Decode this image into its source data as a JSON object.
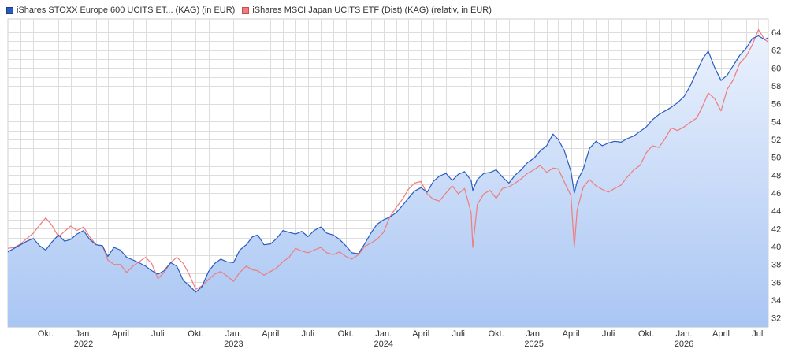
{
  "colors": {
    "series1": "#2a5cbf",
    "series2": "#f07c7c",
    "area_top": "#eaf1fd",
    "area_bottom": "#a9c6f3",
    "grid": "#dddddd"
  },
  "chart_data": {
    "type": "line",
    "legend": [
      "iShares STOXX Europe 600 UCITS ET... (KAG) (in EUR)",
      "iShares MSCI Japan UCITS ETF (Dist) (KAG) (relativ, in EUR)"
    ],
    "legend_position": "top-left",
    "grid": true,
    "y_axis_side": "right",
    "ylim": [
      31,
      65.5
    ],
    "y_ticks": [
      32,
      34,
      36,
      38,
      40,
      42,
      44,
      46,
      48,
      50,
      52,
      54,
      56,
      58,
      60,
      62,
      64
    ],
    "x_range": [
      "2021-07-01",
      "2026-07-25"
    ],
    "x_ticks": [
      {
        "date": "2021-10-01",
        "label": "Okt.",
        "year": ""
      },
      {
        "date": "2022-01-01",
        "label": "Jan.",
        "year": "2022"
      },
      {
        "date": "2022-04-01",
        "label": "April",
        "year": ""
      },
      {
        "date": "2022-07-01",
        "label": "Juli",
        "year": ""
      },
      {
        "date": "2022-10-01",
        "label": "Okt.",
        "year": ""
      },
      {
        "date": "2023-01-01",
        "label": "Jan.",
        "year": "2023"
      },
      {
        "date": "2023-04-01",
        "label": "April",
        "year": ""
      },
      {
        "date": "2023-07-01",
        "label": "Juli",
        "year": ""
      },
      {
        "date": "2023-10-01",
        "label": "Okt.",
        "year": ""
      },
      {
        "date": "2024-01-01",
        "label": "Jan.",
        "year": "2024"
      },
      {
        "date": "2024-04-01",
        "label": "April",
        "year": ""
      },
      {
        "date": "2024-07-01",
        "label": "Juli",
        "year": ""
      },
      {
        "date": "2024-10-01",
        "label": "Okt.",
        "year": ""
      },
      {
        "date": "2025-01-01",
        "label": "Jan.",
        "year": "2025"
      },
      {
        "date": "2025-04-01",
        "label": "April",
        "year": ""
      },
      {
        "date": "2025-07-01",
        "label": "Juli",
        "year": ""
      },
      {
        "date": "2025-10-01",
        "label": "Okt.",
        "year": ""
      },
      {
        "date": "2026-01-01",
        "label": "Jan.",
        "year": "2026"
      },
      {
        "date": "2026-04-01",
        "label": "April",
        "year": ""
      },
      {
        "date": "2026-07-01",
        "label": "Juli",
        "year": ""
      }
    ],
    "series": [
      {
        "name": "iShares STOXX Europe 600 UCITS ET... (KAG) (in EUR)",
        "area": true,
        "x": [
          "2021-07-01",
          "2021-07-16",
          "2021-08-01",
          "2021-08-16",
          "2021-09-01",
          "2021-09-16",
          "2021-10-01",
          "2021-10-16",
          "2021-11-01",
          "2021-11-16",
          "2021-12-01",
          "2021-12-16",
          "2022-01-01",
          "2022-01-16",
          "2022-02-01",
          "2022-02-16",
          "2022-03-01",
          "2022-03-16",
          "2022-04-01",
          "2022-04-16",
          "2022-05-01",
          "2022-05-16",
          "2022-06-01",
          "2022-06-16",
          "2022-07-01",
          "2022-07-16",
          "2022-08-01",
          "2022-08-16",
          "2022-09-01",
          "2022-09-16",
          "2022-10-01",
          "2022-10-16",
          "2022-11-01",
          "2022-11-16",
          "2022-12-01",
          "2022-12-16",
          "2023-01-01",
          "2023-01-16",
          "2023-02-01",
          "2023-02-16",
          "2023-03-01",
          "2023-03-16",
          "2023-04-01",
          "2023-04-16",
          "2023-05-01",
          "2023-05-16",
          "2023-06-01",
          "2023-06-16",
          "2023-07-01",
          "2023-07-16",
          "2023-08-01",
          "2023-08-16",
          "2023-09-01",
          "2023-09-16",
          "2023-10-01",
          "2023-10-16",
          "2023-11-01",
          "2023-11-16",
          "2023-12-01",
          "2023-12-16",
          "2024-01-01",
          "2024-01-16",
          "2024-02-01",
          "2024-02-16",
          "2024-03-01",
          "2024-03-16",
          "2024-04-01",
          "2024-04-16",
          "2024-05-01",
          "2024-05-16",
          "2024-06-01",
          "2024-06-16",
          "2024-07-01",
          "2024-07-16",
          "2024-08-01",
          "2024-08-05",
          "2024-08-16",
          "2024-09-01",
          "2024-09-16",
          "2024-10-01",
          "2024-10-16",
          "2024-11-01",
          "2024-11-16",
          "2024-12-01",
          "2024-12-16",
          "2025-01-01",
          "2025-01-16",
          "2025-02-01",
          "2025-02-16",
          "2025-03-01",
          "2025-03-16",
          "2025-04-01",
          "2025-04-09",
          "2025-04-16",
          "2025-05-01",
          "2025-05-16",
          "2025-06-01",
          "2025-06-16",
          "2025-07-01",
          "2025-07-16",
          "2025-08-01",
          "2025-08-16",
          "2025-09-01",
          "2025-09-16",
          "2025-10-01",
          "2025-10-16",
          "2025-11-01",
          "2025-11-16",
          "2025-12-01",
          "2025-12-16",
          "2026-01-01",
          "2026-01-16",
          "2026-02-01",
          "2026-02-16",
          "2026-03-01",
          "2026-03-16",
          "2026-04-01",
          "2026-04-16",
          "2026-05-01",
          "2026-05-16",
          "2026-06-01",
          "2026-06-16",
          "2026-07-01",
          "2026-07-16",
          "2026-07-25"
        ],
        "values": [
          39.4,
          39.8,
          40.2,
          40.6,
          40.9,
          40.1,
          39.6,
          40.5,
          41.3,
          40.6,
          40.8,
          41.4,
          41.8,
          40.8,
          40.2,
          40.1,
          38.9,
          39.9,
          39.6,
          38.8,
          38.5,
          38.2,
          37.8,
          37.3,
          36.9,
          37.3,
          38.2,
          37.8,
          36.2,
          35.6,
          34.9,
          35.5,
          37.2,
          38.1,
          38.6,
          38.3,
          38.2,
          39.6,
          40.2,
          41.1,
          41.3,
          40.2,
          40.3,
          40.9,
          41.8,
          41.6,
          41.4,
          41.7,
          41.1,
          41.8,
          42.2,
          41.5,
          41.3,
          40.8,
          40.1,
          39.3,
          39.2,
          40.3,
          41.5,
          42.5,
          43.0,
          43.3,
          43.8,
          44.6,
          45.4,
          46.2,
          46.6,
          46.1,
          47.3,
          47.9,
          48.2,
          47.4,
          48.1,
          48.4,
          47.4,
          46.3,
          47.5,
          48.2,
          48.3,
          48.6,
          47.8,
          47.1,
          48.0,
          48.6,
          49.4,
          49.9,
          50.7,
          51.3,
          52.6,
          52.0,
          50.7,
          48.4,
          46.0,
          47.3,
          48.7,
          51.0,
          51.8,
          51.3,
          51.6,
          51.8,
          51.7,
          52.1,
          52.4,
          52.9,
          53.4,
          54.2,
          54.8,
          55.2,
          55.6,
          56.1,
          56.8,
          58.0,
          59.6,
          61.1,
          61.9,
          60.1,
          58.6,
          59.2,
          60.3,
          61.4,
          62.2,
          63.3,
          63.6,
          63.2,
          63.4
        ]
      },
      {
        "name": "iShares MSCI Japan UCITS ETF (Dist) (KAG) (relativ, in EUR)",
        "area": false,
        "x": [
          "2021-07-01",
          "2021-07-16",
          "2021-08-01",
          "2021-08-16",
          "2021-09-01",
          "2021-09-16",
          "2021-10-01",
          "2021-10-16",
          "2021-11-01",
          "2021-11-16",
          "2021-12-01",
          "2021-12-16",
          "2022-01-01",
          "2022-01-16",
          "2022-02-01",
          "2022-02-16",
          "2022-03-01",
          "2022-03-16",
          "2022-04-01",
          "2022-04-16",
          "2022-05-01",
          "2022-05-16",
          "2022-06-01",
          "2022-06-16",
          "2022-07-01",
          "2022-07-16",
          "2022-08-01",
          "2022-08-16",
          "2022-09-01",
          "2022-09-16",
          "2022-10-01",
          "2022-10-16",
          "2022-11-01",
          "2022-11-16",
          "2022-12-01",
          "2022-12-16",
          "2023-01-01",
          "2023-01-16",
          "2023-02-01",
          "2023-02-16",
          "2023-03-01",
          "2023-03-16",
          "2023-04-01",
          "2023-04-16",
          "2023-05-01",
          "2023-05-16",
          "2023-06-01",
          "2023-06-16",
          "2023-07-01",
          "2023-07-16",
          "2023-08-01",
          "2023-08-16",
          "2023-09-01",
          "2023-09-16",
          "2023-10-01",
          "2023-10-16",
          "2023-11-01",
          "2023-11-16",
          "2023-12-01",
          "2023-12-16",
          "2024-01-01",
          "2024-01-16",
          "2024-02-01",
          "2024-02-16",
          "2024-03-01",
          "2024-03-16",
          "2024-04-01",
          "2024-04-16",
          "2024-05-01",
          "2024-05-16",
          "2024-06-01",
          "2024-06-16",
          "2024-07-01",
          "2024-07-16",
          "2024-08-01",
          "2024-08-05",
          "2024-08-16",
          "2024-09-01",
          "2024-09-16",
          "2024-10-01",
          "2024-10-16",
          "2024-11-01",
          "2024-11-16",
          "2024-12-01",
          "2024-12-16",
          "2025-01-01",
          "2025-01-16",
          "2025-02-01",
          "2025-02-16",
          "2025-03-01",
          "2025-03-16",
          "2025-04-01",
          "2025-04-09",
          "2025-04-16",
          "2025-05-01",
          "2025-05-16",
          "2025-06-01",
          "2025-06-16",
          "2025-07-01",
          "2025-07-16",
          "2025-08-01",
          "2025-08-16",
          "2025-09-01",
          "2025-09-16",
          "2025-10-01",
          "2025-10-16",
          "2025-11-01",
          "2025-11-16",
          "2025-12-01",
          "2025-12-16",
          "2026-01-01",
          "2026-01-16",
          "2026-02-01",
          "2026-02-16",
          "2026-03-01",
          "2026-03-16",
          "2026-04-01",
          "2026-04-16",
          "2026-05-01",
          "2026-05-16",
          "2026-06-01",
          "2026-06-16",
          "2026-07-01",
          "2026-07-16",
          "2026-07-25"
        ],
        "values": [
          39.8,
          39.9,
          40.3,
          40.9,
          41.5,
          42.4,
          43.2,
          42.4,
          41.1,
          41.7,
          42.3,
          41.8,
          42.2,
          41.1,
          40.2,
          40.1,
          38.5,
          38.0,
          38.0,
          37.1,
          37.8,
          38.3,
          38.8,
          38.1,
          36.4,
          37.1,
          38.2,
          38.8,
          38.1,
          36.8,
          35.2,
          35.6,
          36.3,
          36.9,
          37.2,
          36.7,
          36.1,
          37.1,
          37.8,
          37.4,
          37.3,
          36.8,
          37.2,
          37.6,
          38.3,
          38.8,
          39.8,
          39.5,
          39.3,
          39.6,
          39.9,
          39.3,
          39.1,
          39.4,
          38.9,
          38.6,
          39.1,
          40.0,
          40.4,
          40.8,
          41.6,
          43.3,
          44.4,
          45.3,
          46.4,
          47.1,
          47.3,
          45.9,
          45.3,
          45.1,
          46.0,
          46.8,
          45.9,
          46.5,
          43.8,
          39.9,
          44.7,
          45.9,
          46.3,
          45.4,
          46.5,
          46.7,
          47.1,
          47.6,
          48.2,
          48.6,
          49.1,
          48.3,
          48.8,
          48.7,
          47.2,
          45.7,
          39.9,
          44.1,
          46.7,
          47.5,
          46.8,
          46.4,
          46.1,
          46.5,
          46.9,
          47.8,
          48.6,
          49.1,
          50.5,
          51.3,
          51.1,
          52.1,
          53.3,
          53.0,
          53.4,
          53.9,
          54.4,
          55.8,
          57.2,
          56.6,
          55.2,
          57.6,
          58.7,
          60.5,
          61.3,
          62.6,
          64.3,
          63.2,
          62.9
        ]
      }
    ]
  }
}
